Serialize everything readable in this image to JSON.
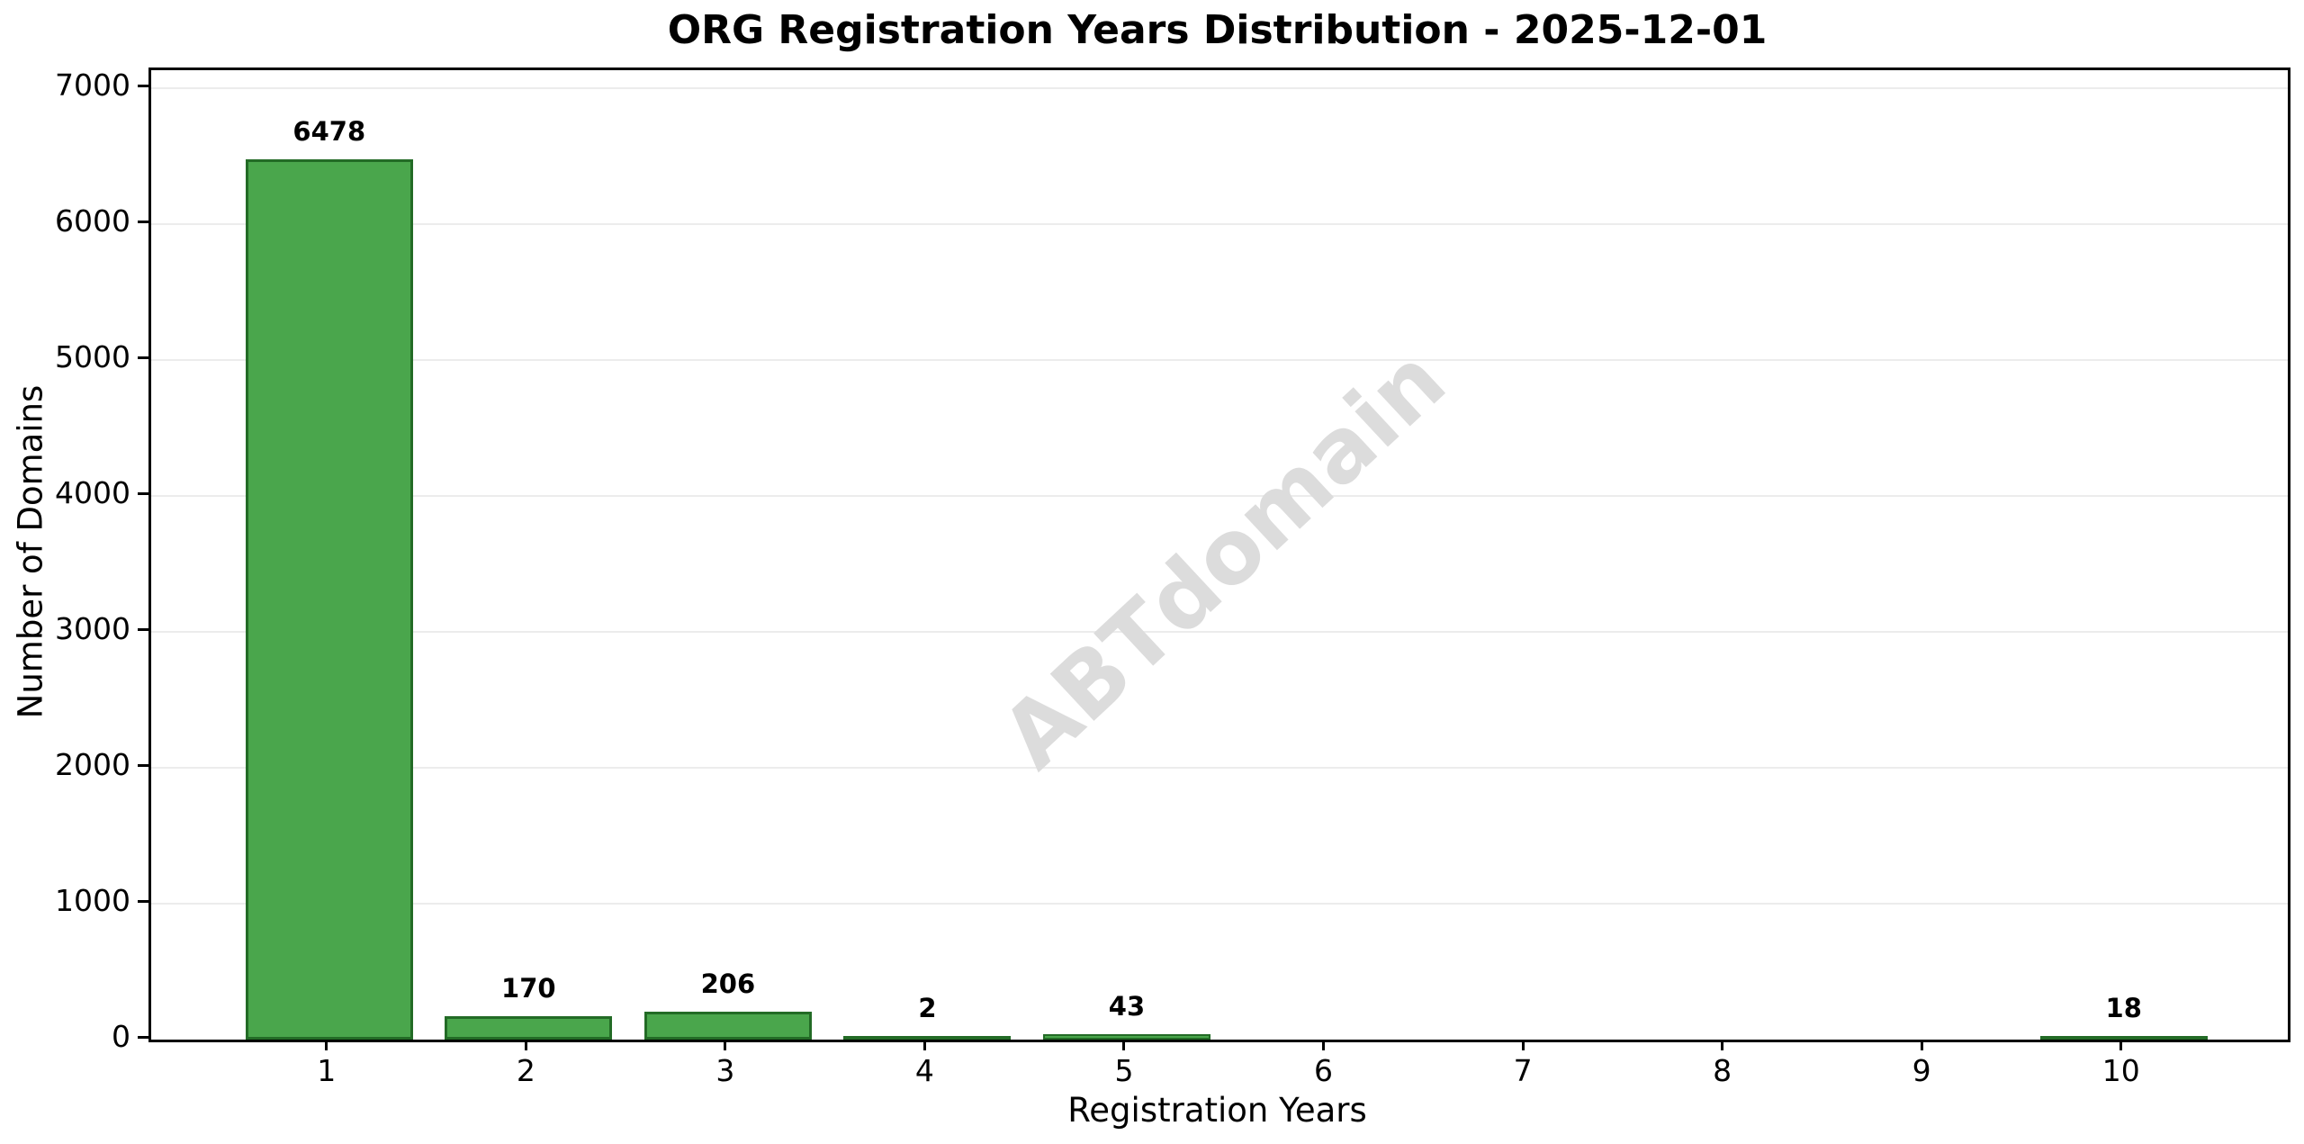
{
  "chart_data": {
    "type": "bar",
    "title": "ORG Registration Years Distribution - 2025-12-01",
    "xlabel": "Registration Years",
    "ylabel": "Number of Domains",
    "categories": [
      "1",
      "2",
      "3",
      "4",
      "5",
      "6",
      "7",
      "8",
      "9",
      "10"
    ],
    "values": [
      6478,
      170,
      206,
      2,
      43,
      0,
      0,
      0,
      0,
      18
    ],
    "bar_labels": [
      "6478",
      "170",
      "206",
      "2",
      "43",
      null,
      null,
      null,
      null,
      "18"
    ],
    "ylim": [
      0,
      7000
    ],
    "yticks": [
      0,
      1000,
      2000,
      3000,
      4000,
      5000,
      6000,
      7000
    ],
    "grid": "horizontal",
    "legend": "none",
    "bar_color": "#4aa64c",
    "bar_edge_color": "#236b26",
    "grid_color": "#ececec",
    "axis_color": "#000000"
  },
  "watermark": {
    "text": "ABTdomain",
    "color": "#dcdcdc"
  }
}
